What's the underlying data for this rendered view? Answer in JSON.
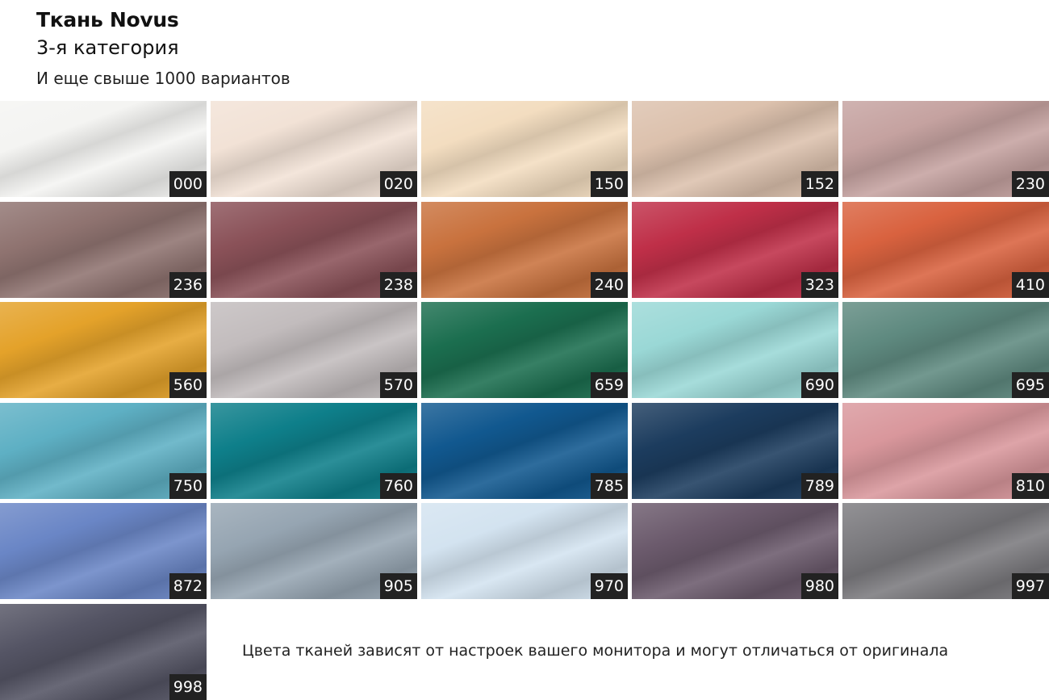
{
  "header": {
    "title": "Ткань Novus",
    "category": "3-я категория",
    "more": "И еще свыше 1000 вариантов"
  },
  "swatches": [
    {
      "code": "000",
      "color": "#f4f4f2"
    },
    {
      "code": "020",
      "color": "#f2e2d6"
    },
    {
      "code": "150",
      "color": "#f3ddc0"
    },
    {
      "code": "152",
      "color": "#dcc1ad"
    },
    {
      "code": "230",
      "color": "#c5a2a0"
    },
    {
      "code": "236",
      "color": "#8f7370"
    },
    {
      "code": "238",
      "color": "#8a5158"
    },
    {
      "code": "240",
      "color": "#c9723e"
    },
    {
      "code": "323",
      "color": "#bf2f48"
    },
    {
      "code": "410",
      "color": "#d9623f"
    },
    {
      "code": "560",
      "color": "#e4a22a"
    },
    {
      "code": "570",
      "color": "#c2bcbd"
    },
    {
      "code": "659",
      "color": "#1b6e4f"
    },
    {
      "code": "690",
      "color": "#9ad8d6"
    },
    {
      "code": "695",
      "color": "#5f8a80"
    },
    {
      "code": "750",
      "color": "#5eb0c4"
    },
    {
      "code": "760",
      "color": "#0e7f8a"
    },
    {
      "code": "785",
      "color": "#11588f"
    },
    {
      "code": "789",
      "color": "#1c3c5e"
    },
    {
      "code": "810",
      "color": "#d9979c"
    },
    {
      "code": "872",
      "color": "#6a86c6"
    },
    {
      "code": "905",
      "color": "#96a5b2"
    },
    {
      "code": "970",
      "color": "#d3e3f0"
    },
    {
      "code": "980",
      "color": "#6b5a6c"
    },
    {
      "code": "997",
      "color": "#7b7a7e"
    },
    {
      "code": "998",
      "color": "#545464"
    }
  ],
  "note": "Цвета тканей зависят от настроек вашего монитора и могут отличаться от оригинала"
}
